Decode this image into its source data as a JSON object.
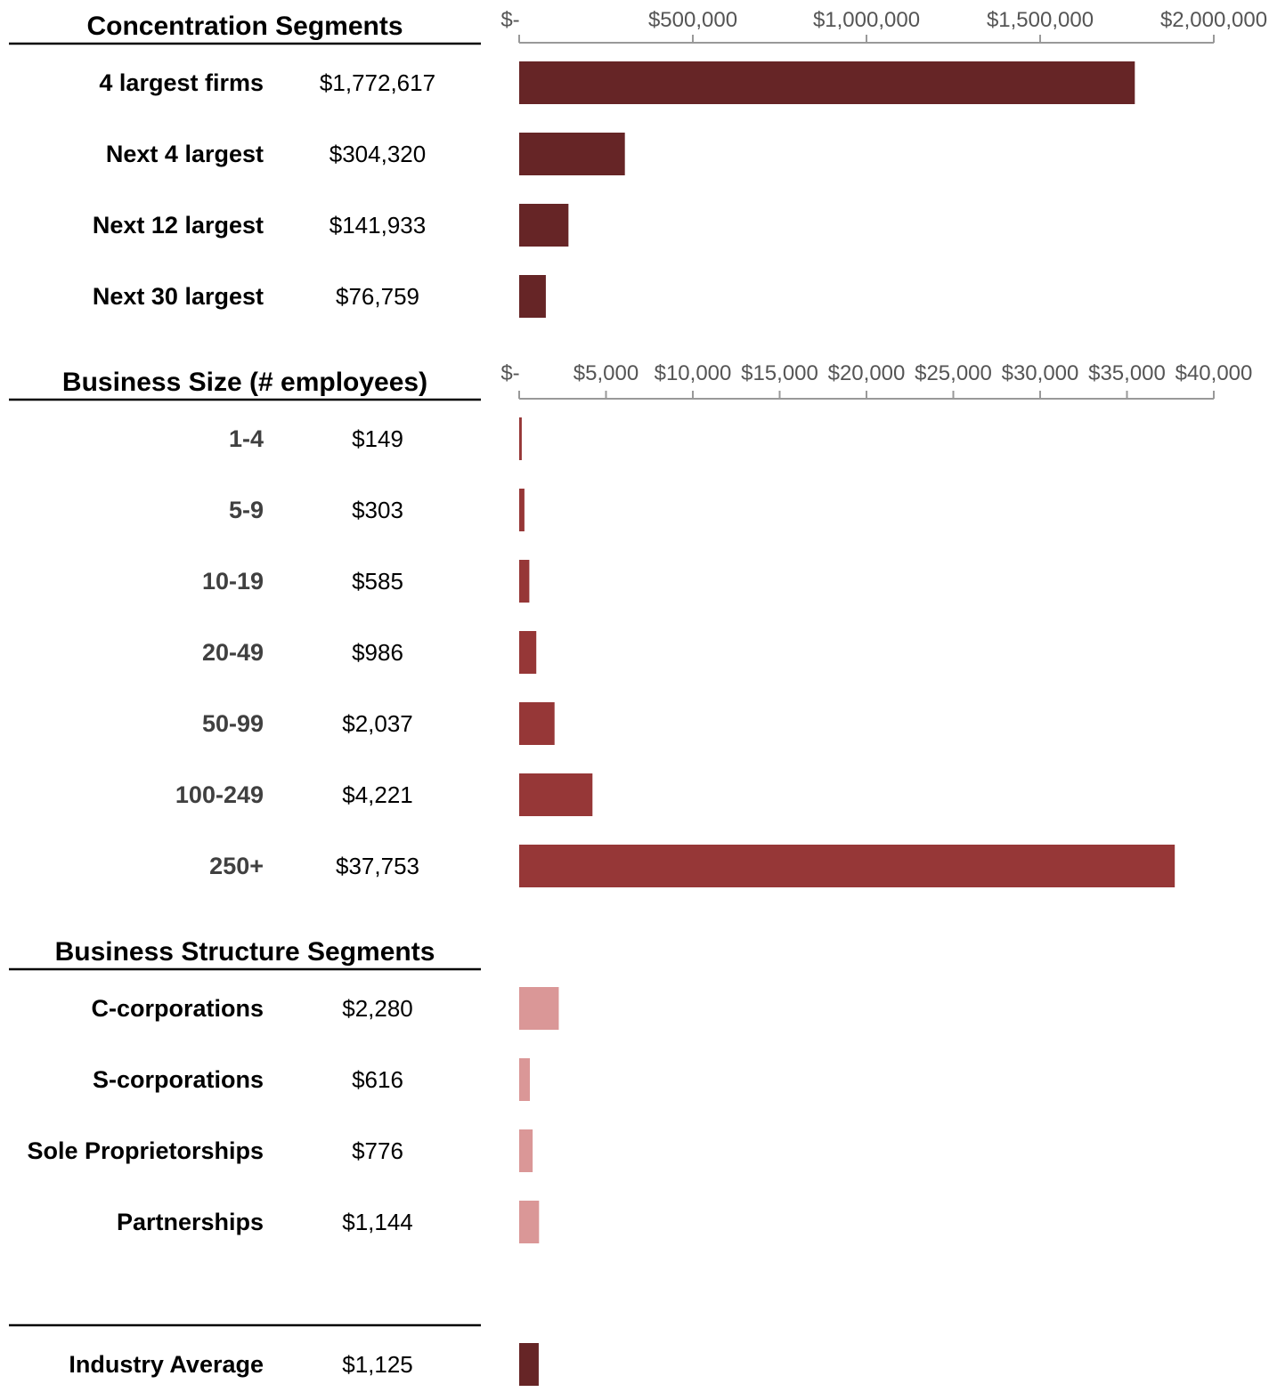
{
  "chart_data": [
    {
      "type": "bar",
      "orientation": "horizontal",
      "title": "Concentration Segments",
      "categories": [
        "4 largest firms",
        "Next 4 largest",
        "Next 12 largest",
        "Next 30 largest"
      ],
      "values": [
        1772617,
        304320,
        141933,
        76759
      ],
      "value_labels": [
        "$1,772,617",
        "$304,320",
        "$141,933",
        "$76,759"
      ],
      "xlim": [
        0,
        2000000
      ],
      "tick_values": [
        0,
        500000,
        1000000,
        1500000,
        2000000
      ],
      "tick_labels": [
        "$-",
        "$500,000",
        "$1,000,000",
        "$1,500,000",
        "$2,000,000"
      ],
      "axis_position": "top",
      "color": "#662526",
      "label_color": "#000000",
      "grid": false
    },
    {
      "type": "bar",
      "orientation": "horizontal",
      "title": "Business Size (# employees)",
      "categories": [
        "1-4",
        "5-9",
        "10-19",
        "20-49",
        "50-99",
        "100-249",
        "250+"
      ],
      "values": [
        149,
        303,
        585,
        986,
        2037,
        4221,
        37753
      ],
      "value_labels": [
        "$149",
        "$303",
        "$585",
        "$986",
        "$2,037",
        "$4,221",
        "$37,753"
      ],
      "xlim": [
        0,
        40000
      ],
      "tick_values": [
        0,
        5000,
        10000,
        15000,
        20000,
        25000,
        30000,
        35000,
        40000
      ],
      "tick_labels": [
        "$-",
        "$5,000",
        "$10,000",
        "$15,000",
        "$20,000",
        "$25,000",
        "$30,000",
        "$35,000",
        "$40,000"
      ],
      "axis_position": "top",
      "color": "#963737",
      "label_color": "#404040",
      "grid": false
    },
    {
      "type": "bar",
      "orientation": "horizontal",
      "title": "Business Structure Segments",
      "categories": [
        "C-corporations",
        "S-corporations",
        "Sole Proprietorships",
        "Partnerships"
      ],
      "values": [
        2280,
        616,
        776,
        1144
      ],
      "value_labels": [
        "$2,280",
        "$616",
        "$776",
        "$1,144"
      ],
      "xlim": [
        0,
        40000
      ],
      "axis_position": "none",
      "color": "#DA9797",
      "label_color": "#000000",
      "grid": false
    },
    {
      "type": "bar",
      "orientation": "horizontal",
      "title": "",
      "categories": [
        "Industry Average"
      ],
      "values": [
        1125
      ],
      "value_labels": [
        "$1,125"
      ],
      "xlim": [
        0,
        40000
      ],
      "axis_position": "none",
      "color": "#662526",
      "label_color": "#000000",
      "grid": false
    }
  ]
}
